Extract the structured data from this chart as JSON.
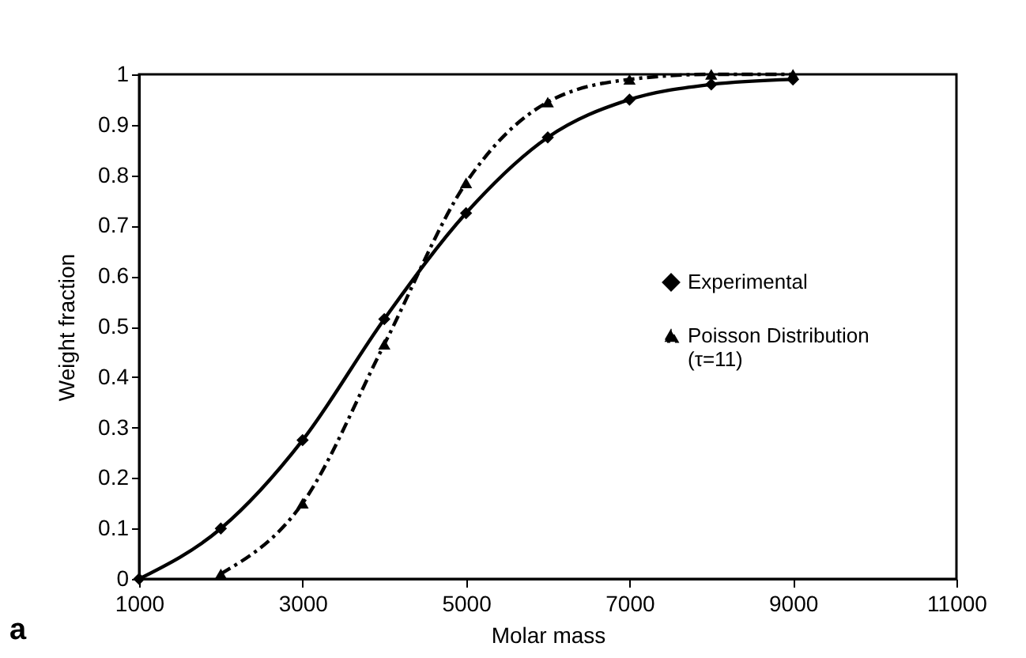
{
  "chart_data": {
    "type": "line",
    "xlabel": "Molar mass",
    "ylabel": "Weight fraction",
    "annotations": [
      "a"
    ],
    "xlim": [
      1000,
      11000
    ],
    "xticks": [
      1000,
      3000,
      5000,
      7000,
      9000,
      11000
    ],
    "ylim": [
      0,
      1
    ],
    "yticks": [
      0,
      0.1,
      0.2,
      0.3,
      0.4,
      0.5,
      0.6,
      0.7,
      0.8,
      0.9,
      1
    ],
    "grid": false,
    "legend": "right",
    "series": [
      {
        "name": "Experimental",
        "color": "#000000",
        "marker": "diamond",
        "line_style": "solid",
        "x": [
          1000,
          2000,
          3000,
          4000,
          5000,
          6000,
          7000,
          8000,
          9000
        ],
        "values": [
          0,
          0.1,
          0.275,
          0.515,
          0.725,
          0.875,
          0.95,
          0.98,
          0.99
        ]
      },
      {
        "name": "Poisson Distribution\n(τ=11)",
        "color": "#000000",
        "marker": "triangle",
        "line_style": "dashed",
        "x": [
          2000,
          3000,
          4000,
          5000,
          6000,
          7000,
          8000,
          9000
        ],
        "values": [
          0.01,
          0.15,
          0.465,
          0.785,
          0.945,
          0.99,
          1,
          1
        ]
      }
    ]
  }
}
